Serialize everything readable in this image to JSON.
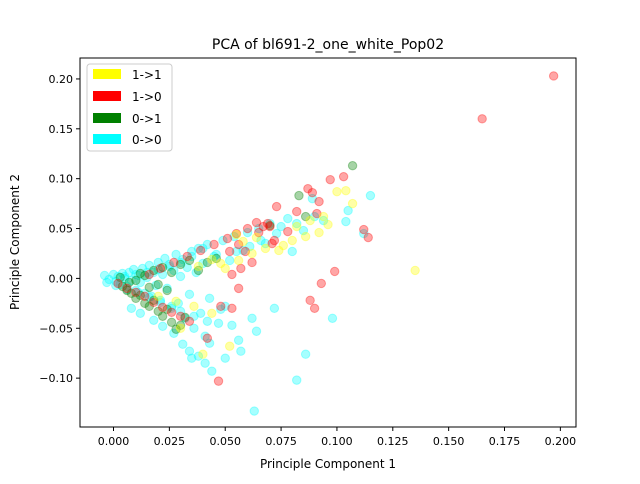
{
  "chart_data": {
    "type": "scatter",
    "title": "PCA of bl691-2_one_white_Pop02",
    "xlabel": "Principle Component 1",
    "ylabel": "Principle Component 2",
    "xlim": [
      -0.015,
      0.207
    ],
    "ylim": [
      -0.149,
      0.221
    ],
    "xticks": [
      0.0,
      0.025,
      0.05,
      0.075,
      0.1,
      0.125,
      0.15,
      0.175,
      0.2
    ],
    "xtick_labels": [
      "0.000",
      "0.025",
      "0.050",
      "0.075",
      "0.100",
      "0.125",
      "0.150",
      "0.175",
      "0.200"
    ],
    "yticks": [
      -0.1,
      -0.05,
      0.0,
      0.05,
      0.1,
      0.15,
      0.2
    ],
    "ytick_labels": [
      "−0.10",
      "−0.05",
      "0.00",
      "0.05",
      "0.10",
      "0.15",
      "0.20"
    ],
    "legend_position": "top-left",
    "grid": false,
    "marker_alpha": 0.35,
    "series": [
      {
        "name": "0->0",
        "color": "#00ffff",
        "points": [
          [
            -0.004,
            0.003
          ],
          [
            -0.002,
            -0.001
          ],
          [
            0.0,
            0.004
          ],
          [
            0.001,
            -0.003
          ],
          [
            0.002,
            0.002
          ],
          [
            0.003,
            -0.006
          ],
          [
            0.004,
            0.005
          ],
          [
            0.005,
            0.0
          ],
          [
            0.006,
            -0.008
          ],
          [
            0.007,
            0.006
          ],
          [
            0.008,
            -0.002
          ],
          [
            0.009,
            0.009
          ],
          [
            0.01,
            -0.012
          ],
          [
            0.011,
            0.003
          ],
          [
            0.012,
            -0.004
          ],
          [
            0.013,
            0.01
          ],
          [
            0.014,
            -0.015
          ],
          [
            0.015,
            0.001
          ],
          [
            0.016,
            0.013
          ],
          [
            0.017,
            -0.018
          ],
          [
            0.018,
            0.006
          ],
          [
            0.019,
            -0.007
          ],
          [
            0.02,
            0.016
          ],
          [
            0.021,
            -0.022
          ],
          [
            0.022,
            0.004
          ],
          [
            0.023,
            0.02
          ],
          [
            0.024,
            -0.01
          ],
          [
            0.025,
            0.014
          ],
          [
            0.026,
            -0.03
          ],
          [
            0.027,
            0.008
          ],
          [
            0.028,
            0.024
          ],
          [
            0.029,
            -0.025
          ],
          [
            0.03,
            0.002
          ],
          [
            0.031,
            0.019
          ],
          [
            0.032,
            -0.04
          ],
          [
            0.033,
            0.011
          ],
          [
            0.034,
            -0.016
          ],
          [
            0.035,
            0.027
          ],
          [
            0.036,
            -0.05
          ],
          [
            0.037,
            0.006
          ],
          [
            0.038,
            0.03
          ],
          [
            0.039,
            -0.035
          ],
          [
            0.04,
            0.015
          ],
          [
            0.041,
            -0.058
          ],
          [
            0.042,
            0.034
          ],
          [
            0.043,
            -0.02
          ],
          [
            0.045,
            0.022
          ],
          [
            0.047,
            -0.045
          ],
          [
            0.049,
            0.038
          ],
          [
            0.05,
            -0.028
          ],
          [
            0.052,
            0.018
          ],
          [
            0.054,
            0.042
          ],
          [
            0.056,
            -0.062
          ],
          [
            0.058,
            0.028
          ],
          [
            0.06,
            0.046
          ],
          [
            0.062,
            -0.04
          ],
          [
            0.065,
            0.05
          ],
          [
            0.068,
            0.035
          ],
          [
            0.07,
            0.055
          ],
          [
            0.072,
            -0.03
          ],
          [
            0.075,
            0.052
          ],
          [
            0.078,
            0.06
          ],
          [
            0.08,
            0.027
          ],
          [
            0.082,
            0.055
          ],
          [
            0.085,
            0.048
          ],
          [
            0.089,
            0.08
          ],
          [
            0.09,
            0.062
          ],
          [
            0.094,
            0.058
          ],
          [
            0.098,
            -0.04
          ],
          [
            0.104,
            0.057
          ],
          [
            0.105,
            0.068
          ],
          [
            0.112,
            0.045
          ],
          [
            0.115,
            0.083
          ],
          [
            0.008,
            -0.03
          ],
          [
            0.012,
            -0.035
          ],
          [
            0.018,
            -0.042
          ],
          [
            0.022,
            -0.048
          ],
          [
            0.027,
            -0.055
          ],
          [
            0.031,
            -0.066
          ],
          [
            0.034,
            -0.073
          ],
          [
            0.035,
            -0.08
          ],
          [
            0.038,
            -0.078
          ],
          [
            0.041,
            -0.085
          ],
          [
            0.044,
            -0.093
          ],
          [
            0.05,
            -0.08
          ],
          [
            0.057,
            -0.073
          ],
          [
            0.063,
            -0.133
          ],
          [
            0.082,
            -0.102
          ],
          [
            0.086,
            -0.076
          ],
          [
            0.064,
            -0.053
          ],
          [
            0.053,
            -0.047
          ],
          [
            0.043,
            -0.065
          ],
          [
            0.046,
            0.024
          ],
          [
            0.04,
            0.03
          ],
          [
            0.035,
            0.022
          ],
          [
            0.03,
            0.016
          ],
          [
            0.025,
            0.012
          ],
          [
            0.02,
            0.009
          ],
          [
            0.015,
            0.006
          ],
          [
            0.01,
            0.004
          ],
          [
            0.005,
            0.002
          ],
          [
            -0.003,
            -0.004
          ],
          [
            0.001,
            -0.007
          ],
          [
            0.006,
            -0.011
          ],
          [
            0.011,
            -0.014
          ],
          [
            0.016,
            -0.019
          ],
          [
            0.021,
            -0.024
          ],
          [
            0.026,
            -0.028
          ],
          [
            0.03,
            -0.033
          ],
          [
            0.036,
            -0.038
          ],
          [
            0.042,
            -0.043
          ],
          [
            0.048,
            -0.031
          ],
          [
            0.073,
            0.045
          ],
          [
            0.066,
            0.038
          ],
          [
            0.061,
            0.032
          ],
          [
            0.055,
            0.027
          ]
        ]
      },
      {
        "name": "0->1",
        "color": "#008000",
        "points": [
          [
            0.004,
            -0.008
          ],
          [
            0.006,
            -0.012
          ],
          [
            0.008,
            -0.015
          ],
          [
            0.01,
            -0.02
          ],
          [
            0.012,
            -0.017
          ],
          [
            0.014,
            -0.025
          ],
          [
            0.016,
            -0.028
          ],
          [
            0.018,
            -0.022
          ],
          [
            0.02,
            -0.033
          ],
          [
            0.022,
            -0.038
          ],
          [
            0.024,
            -0.031
          ],
          [
            0.026,
            -0.044
          ],
          [
            0.028,
            -0.051
          ],
          [
            0.03,
            -0.047
          ],
          [
            0.032,
            -0.039
          ],
          [
            0.01,
            -0.002
          ],
          [
            0.014,
            0.003
          ],
          [
            0.018,
            0.008
          ],
          [
            0.022,
            0.011
          ],
          [
            0.026,
            0.006
          ],
          [
            0.03,
            0.014
          ],
          [
            0.034,
            0.018
          ],
          [
            0.038,
            0.008
          ],
          [
            0.042,
            0.016
          ],
          [
            0.046,
            0.02
          ],
          [
            0.07,
            0.053
          ],
          [
            0.083,
            0.083
          ],
          [
            0.086,
            0.062
          ],
          [
            0.107,
            0.113
          ],
          [
            0.003,
            0.001
          ],
          [
            0.007,
            -0.004
          ],
          [
            0.012,
            0.005
          ],
          [
            0.016,
            -0.009
          ],
          [
            0.02,
            -0.006
          ],
          [
            0.024,
            -0.012
          ]
        ]
      },
      {
        "name": "1->0",
        "color": "#ff0000",
        "points": [
          [
            0.002,
            -0.005
          ],
          [
            0.006,
            -0.01
          ],
          [
            0.01,
            -0.014
          ],
          [
            0.014,
            -0.018
          ],
          [
            0.018,
            -0.024
          ],
          [
            0.022,
            -0.029
          ],
          [
            0.026,
            -0.034
          ],
          [
            0.03,
            -0.038
          ],
          [
            0.034,
            -0.043
          ],
          [
            0.016,
            0.004
          ],
          [
            0.021,
            0.01
          ],
          [
            0.027,
            0.016
          ],
          [
            0.033,
            0.022
          ],
          [
            0.039,
            0.028
          ],
          [
            0.045,
            0.034
          ],
          [
            0.051,
            0.04
          ],
          [
            0.055,
            0.045
          ],
          [
            0.06,
            0.05
          ],
          [
            0.064,
            0.056
          ],
          [
            0.067,
            0.052
          ],
          [
            0.069,
            0.055
          ],
          [
            0.07,
            0.052
          ],
          [
            0.073,
            0.072
          ],
          [
            0.071,
            0.035
          ],
          [
            0.062,
            0.016
          ],
          [
            0.057,
            0.01
          ],
          [
            0.053,
            0.004
          ],
          [
            0.052,
            0.027
          ],
          [
            0.056,
            0.034
          ],
          [
            0.059,
            0.027
          ],
          [
            0.048,
            -0.028
          ],
          [
            0.042,
            -0.06
          ],
          [
            0.047,
            -0.103
          ],
          [
            0.053,
            -0.03
          ],
          [
            0.056,
            -0.01
          ],
          [
            0.065,
            0.046
          ],
          [
            0.072,
            0.038
          ],
          [
            0.078,
            0.047
          ],
          [
            0.082,
            0.067
          ],
          [
            0.087,
            0.09
          ],
          [
            0.089,
            0.086
          ],
          [
            0.092,
            0.077
          ],
          [
            0.091,
            0.065
          ],
          [
            0.097,
            0.099
          ],
          [
            0.103,
            0.102
          ],
          [
            0.112,
            0.049
          ],
          [
            0.114,
            0.041
          ],
          [
            0.088,
            -0.022
          ],
          [
            0.093,
            -0.005
          ],
          [
            0.099,
            0.007
          ],
          [
            0.09,
            -0.03
          ],
          [
            0.165,
            0.16
          ],
          [
            0.197,
            0.203
          ]
        ]
      },
      {
        "name": "1->1",
        "color": "#ffff00",
        "points": [
          [
            0.02,
            -0.018
          ],
          [
            0.028,
            -0.023
          ],
          [
            0.036,
            -0.028
          ],
          [
            0.044,
            -0.035
          ],
          [
            0.052,
            -0.068
          ],
          [
            0.04,
            -0.076
          ],
          [
            0.03,
            -0.05
          ],
          [
            0.05,
            0.01
          ],
          [
            0.056,
            0.018
          ],
          [
            0.062,
            0.025
          ],
          [
            0.068,
            0.03
          ],
          [
            0.074,
            0.028
          ],
          [
            0.08,
            0.038
          ],
          [
            0.086,
            0.042
          ],
          [
            0.092,
            0.046
          ],
          [
            0.096,
            0.054
          ],
          [
            0.1,
            0.087
          ],
          [
            0.104,
            0.088
          ],
          [
            0.107,
            0.075
          ],
          [
            0.058,
            0.037
          ],
          [
            0.064,
            0.041
          ],
          [
            0.076,
            0.033
          ],
          [
            0.082,
            0.052
          ],
          [
            0.088,
            0.058
          ],
          [
            0.094,
            0.062
          ],
          [
            0.135,
            0.008
          ],
          [
            0.055,
            0.044
          ],
          [
            0.048,
            0.015
          ],
          [
            0.044,
            0.019
          ],
          [
            0.038,
            0.012
          ]
        ]
      }
    ]
  },
  "legend": {
    "items": [
      {
        "label": "1->1",
        "color": "#ffff00"
      },
      {
        "label": "1->0",
        "color": "#ff0000"
      },
      {
        "label": "0->1",
        "color": "#008000"
      },
      {
        "label": "0->0",
        "color": "#00ffff"
      }
    ]
  }
}
